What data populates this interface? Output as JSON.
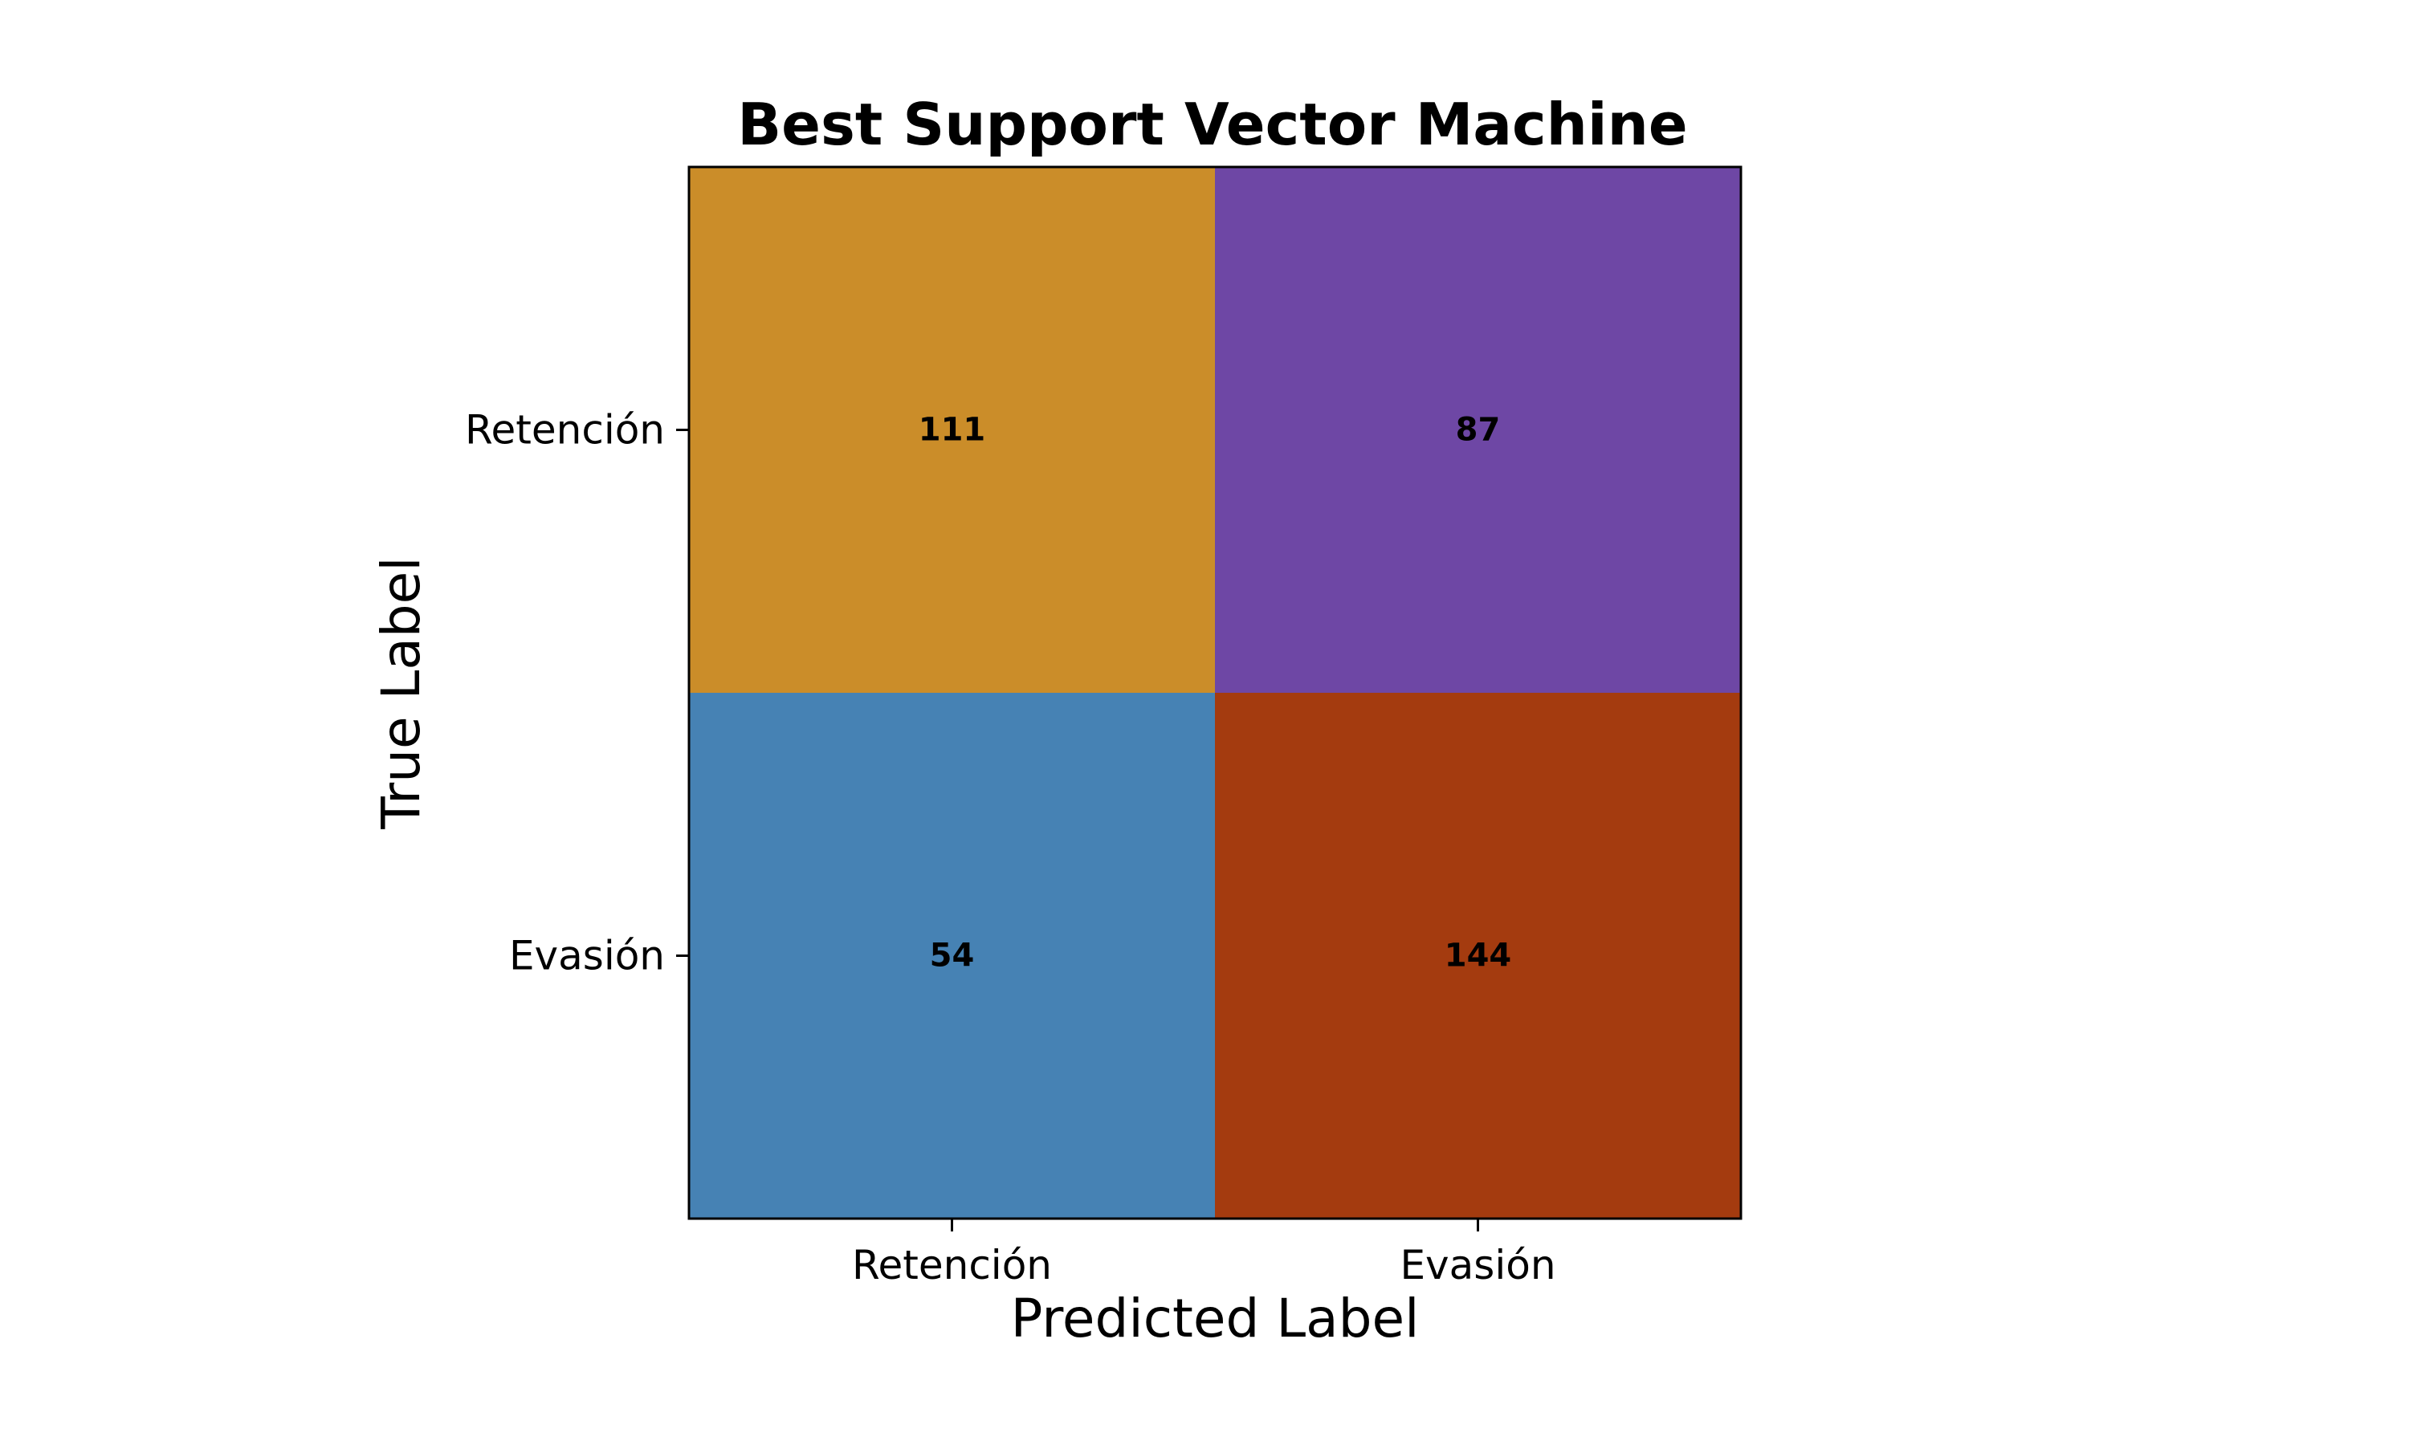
{
  "chart_data": {
    "type": "heatmap",
    "title": "Best Support Vector Machine",
    "xlabel": "Predicted Label",
    "ylabel": "True Label",
    "x_categories": [
      "Retención",
      "Evasión"
    ],
    "y_categories": [
      "Retención",
      "Evasión"
    ],
    "values": [
      [
        111,
        87
      ],
      [
        54,
        144
      ]
    ],
    "cell_colors": [
      [
        "#CB8D29",
        "#6E47A5"
      ],
      [
        "#4682B4",
        "#A43B0F"
      ]
    ],
    "grid": false
  }
}
